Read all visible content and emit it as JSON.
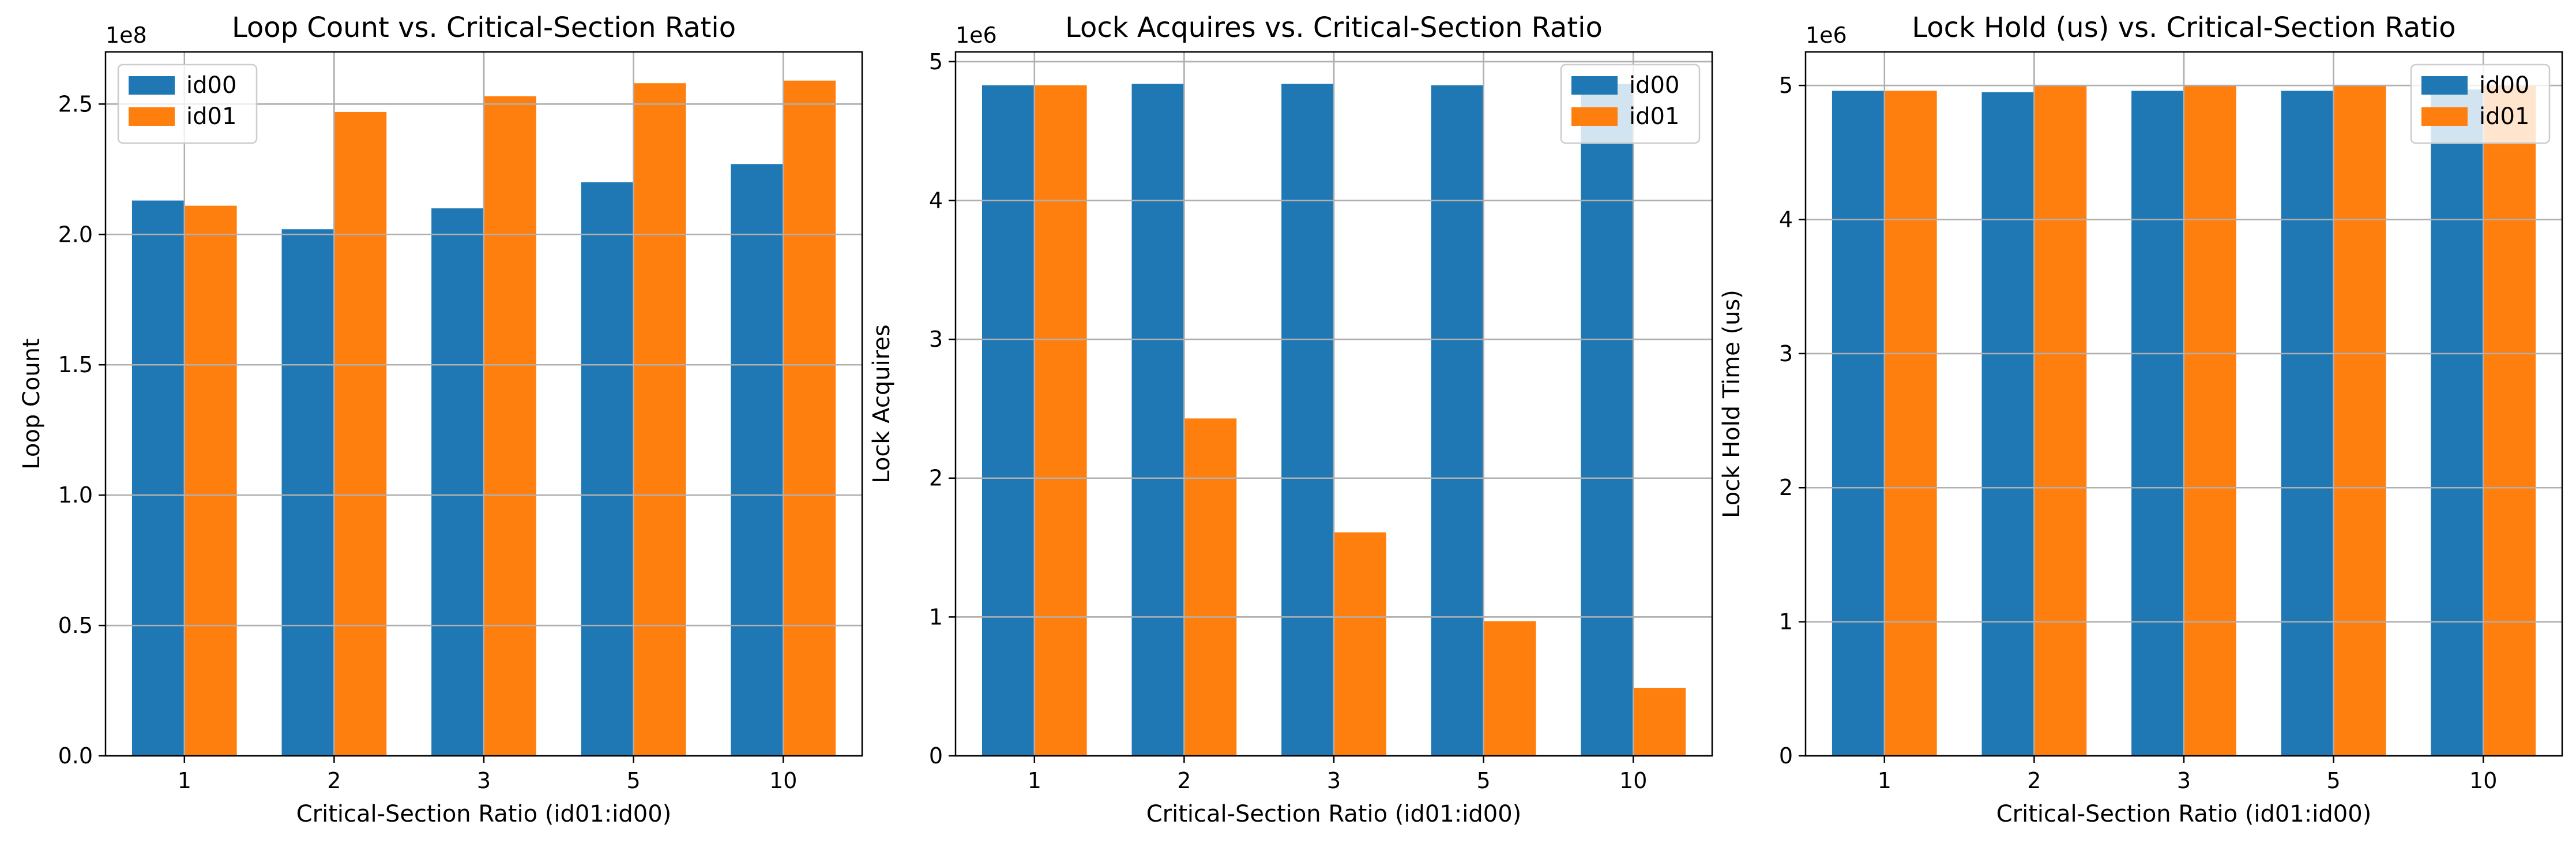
{
  "chart_data": [
    {
      "type": "bar",
      "title": "Loop Count vs. Critical-Section Ratio",
      "xlabel": "Critical-Section Ratio (id01:id00)",
      "ylabel": "Loop Count",
      "y_offset_label": "1e8",
      "y_scale": 100000000,
      "ylim": [
        0,
        2.7
      ],
      "yticks": [
        0,
        0.5,
        1.0,
        1.5,
        2.0,
        2.5
      ],
      "ytick_labels": [
        "0.0",
        "0.5",
        "1.0",
        "1.5",
        "2.0",
        "2.5"
      ],
      "categories": [
        "1",
        "2",
        "3",
        "5",
        "10"
      ],
      "grid": true,
      "legend_position": "upper left",
      "series": [
        {
          "name": "id00",
          "color": "#1f77b4",
          "values": [
            2.13,
            2.02,
            2.1,
            2.2,
            2.27
          ]
        },
        {
          "name": "id01",
          "color": "#ff7f0e",
          "values": [
            2.11,
            2.47,
            2.53,
            2.58,
            2.59
          ]
        }
      ]
    },
    {
      "type": "bar",
      "title": "Lock Acquires vs. Critical-Section Ratio",
      "xlabel": "Critical-Section Ratio (id01:id00)",
      "ylabel": "Lock Acquires",
      "y_offset_label": "1e6",
      "y_scale": 1000000,
      "ylim": [
        0,
        5.07
      ],
      "yticks": [
        0,
        1,
        2,
        3,
        4,
        5
      ],
      "ytick_labels": [
        "0",
        "1",
        "2",
        "3",
        "4",
        "5"
      ],
      "categories": [
        "1",
        "2",
        "3",
        "5",
        "10"
      ],
      "grid": true,
      "legend_position": "upper right",
      "series": [
        {
          "name": "id00",
          "color": "#1f77b4",
          "values": [
            4.83,
            4.84,
            4.84,
            4.83,
            4.84
          ]
        },
        {
          "name": "id01",
          "color": "#ff7f0e",
          "values": [
            4.83,
            2.43,
            1.61,
            0.97,
            0.49
          ]
        }
      ]
    },
    {
      "type": "bar",
      "title": "Lock Hold (us) vs. Critical-Section Ratio",
      "xlabel": "Critical-Section Ratio (id01:id00)",
      "ylabel": "Lock Hold Time (us)",
      "y_offset_label": "1e6",
      "y_scale": 1000000,
      "ylim": [
        0,
        5.25
      ],
      "yticks": [
        0,
        1,
        2,
        3,
        4,
        5
      ],
      "ytick_labels": [
        "0",
        "1",
        "2",
        "3",
        "4",
        "5"
      ],
      "categories": [
        "1",
        "2",
        "3",
        "5",
        "10"
      ],
      "grid": true,
      "legend_position": "upper right",
      "series": [
        {
          "name": "id00",
          "color": "#1f77b4",
          "values": [
            4.96,
            4.95,
            4.96,
            4.96,
            4.97
          ]
        },
        {
          "name": "id01",
          "color": "#ff7f0e",
          "values": [
            4.96,
            5.0,
            5.0,
            5.0,
            5.0
          ]
        }
      ]
    }
  ]
}
